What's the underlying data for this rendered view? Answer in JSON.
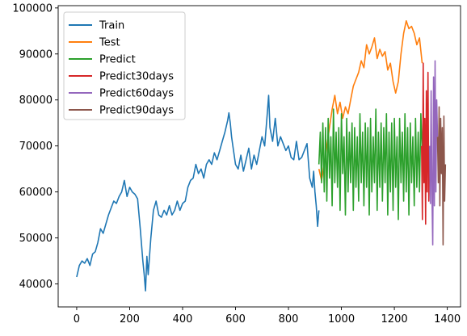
{
  "chart_data": {
    "type": "line",
    "title": "",
    "xlabel": "",
    "ylabel": "",
    "xlim": [
      -70,
      1450
    ],
    "ylim": [
      35000,
      100500
    ],
    "xticks": [
      0,
      200,
      400,
      600,
      800,
      1000,
      1200,
      1400
    ],
    "yticks": [
      40000,
      50000,
      60000,
      70000,
      80000,
      90000,
      100000
    ],
    "grid": false,
    "legend_position": "top-left",
    "series": [
      {
        "name": "Train",
        "color": "#1f77b4",
        "x": [
          0,
          10,
          20,
          30,
          40,
          50,
          60,
          70,
          80,
          90,
          100,
          110,
          120,
          130,
          140,
          150,
          160,
          170,
          180,
          190,
          200,
          210,
          220,
          230,
          240,
          250,
          255,
          260,
          265,
          270,
          280,
          290,
          300,
          310,
          320,
          330,
          340,
          350,
          360,
          370,
          380,
          390,
          400,
          410,
          420,
          430,
          440,
          450,
          460,
          470,
          480,
          490,
          500,
          510,
          520,
          530,
          540,
          550,
          560,
          570,
          575,
          580,
          585,
          590,
          600,
          610,
          620,
          630,
          640,
          650,
          660,
          670,
          680,
          690,
          700,
          710,
          720,
          725,
          730,
          740,
          750,
          760,
          770,
          780,
          790,
          800,
          810,
          820,
          830,
          840,
          850,
          860,
          870,
          880,
          890,
          895,
          900,
          905,
          910,
          915
        ],
        "values": [
          41500,
          44000,
          45000,
          44500,
          45500,
          44000,
          46500,
          47000,
          49000,
          52000,
          51000,
          53000,
          55000,
          56500,
          58000,
          57500,
          59000,
          60000,
          62500,
          59000,
          61000,
          60000,
          59500,
          58500,
          52000,
          45000,
          42000,
          38500,
          46000,
          42000,
          50000,
          56000,
          58000,
          55000,
          54500,
          56000,
          55000,
          57000,
          55000,
          56000,
          58000,
          56000,
          57500,
          58000,
          61000,
          62500,
          63000,
          66000,
          64000,
          65000,
          63000,
          66000,
          67000,
          66000,
          68500,
          67000,
          69000,
          71000,
          73000,
          75500,
          77200,
          75000,
          72000,
          70000,
          66000,
          65000,
          68000,
          64500,
          67000,
          69500,
          65000,
          68000,
          66000,
          69000,
          72000,
          70000,
          77000,
          81000,
          74000,
          71000,
          76000,
          70000,
          72000,
          70500,
          69000,
          70000,
          67500,
          67000,
          71000,
          67000,
          67500,
          69000,
          70500,
          63000,
          61000,
          64500,
          60000,
          57000,
          52500,
          56000
        ]
      },
      {
        "name": "Test",
        "color": "#ff7f0e",
        "x": [
          915,
          925,
          935,
          945,
          955,
          965,
          975,
          985,
          995,
          1005,
          1015,
          1025,
          1035,
          1045,
          1055,
          1065,
          1075,
          1085,
          1095,
          1105,
          1115,
          1125,
          1135,
          1145,
          1155,
          1165,
          1175,
          1185,
          1195,
          1205,
          1215,
          1225,
          1235,
          1245,
          1255,
          1265,
          1275,
          1285,
          1295,
          1305
        ],
        "values": [
          65000,
          62500,
          66000,
          70000,
          74000,
          78000,
          81000,
          77000,
          79500,
          76000,
          78500,
          77000,
          80000,
          83000,
          84500,
          86000,
          88500,
          87000,
          92000,
          90000,
          91500,
          93500,
          89000,
          91000,
          89500,
          90500,
          86500,
          88000,
          84000,
          81500,
          84000,
          90000,
          94500,
          97200,
          95500,
          96000,
          94500,
          92000,
          93500,
          88000
        ]
      },
      {
        "name": "Predict",
        "color": "#2ca02c",
        "x": [
          915,
          920,
          925,
          930,
          935,
          940,
          945,
          950,
          955,
          960,
          965,
          970,
          975,
          980,
          985,
          990,
          995,
          1000,
          1005,
          1010,
          1015,
          1020,
          1025,
          1030,
          1035,
          1040,
          1045,
          1050,
          1055,
          1060,
          1065,
          1070,
          1075,
          1080,
          1085,
          1090,
          1095,
          1100,
          1105,
          1110,
          1115,
          1120,
          1125,
          1130,
          1135,
          1140,
          1145,
          1150,
          1155,
          1160,
          1165,
          1170,
          1175,
          1180,
          1185,
          1190,
          1195,
          1200,
          1205,
          1210,
          1215,
          1220,
          1225,
          1230,
          1235,
          1240,
          1245,
          1250,
          1255,
          1260,
          1265,
          1270,
          1275,
          1280,
          1285,
          1290,
          1295,
          1300,
          1305
        ],
        "values": [
          66000,
          73000,
          62000,
          75000,
          60000,
          74000,
          58000,
          76000,
          63000,
          72000,
          57000,
          78000,
          62000,
          73000,
          61000,
          74000,
          56000,
          77000,
          64000,
          72000,
          55000,
          76000,
          60000,
          73000,
          62000,
          75000,
          56000,
          74000,
          61000,
          72000,
          58000,
          77000,
          62000,
          73000,
          57000,
          75000,
          61000,
          74000,
          55000,
          76000,
          60000,
          72000,
          62000,
          78000,
          56000,
          73000,
          61000,
          75000,
          58000,
          74000,
          62000,
          77000,
          55000,
          73000,
          60000,
          75000,
          56000,
          76000,
          61000,
          72000,
          54000,
          76000,
          62000,
          73000,
          58000,
          77000,
          60000,
          74000,
          55000,
          75000,
          62000,
          72000,
          57000,
          76000,
          61000,
          73000,
          60000,
          77000,
          69000
        ]
      },
      {
        "name": "Predict30days",
        "color": "#d62728",
        "x": [
          1303,
          1306,
          1309,
          1312,
          1315,
          1318,
          1321,
          1324,
          1327,
          1330,
          1333
        ],
        "values": [
          70000,
          54000,
          88000,
          62000,
          76000,
          53000,
          82000,
          60000,
          86000,
          58000,
          70000
        ]
      },
      {
        "name": "Predict60days",
        "color": "#9467bd",
        "x": [
          1333,
          1336,
          1339,
          1342,
          1345,
          1348,
          1351,
          1354,
          1357,
          1360,
          1363
        ],
        "values": [
          70000,
          57500,
          82000,
          60000,
          48500,
          85000,
          57000,
          88500,
          60000,
          80000,
          72000
        ]
      },
      {
        "name": "Predict90days",
        "color": "#8c564b",
        "x": [
          1363,
          1366,
          1369,
          1372,
          1375,
          1378,
          1381,
          1384,
          1387,
          1390,
          1393
        ],
        "values": [
          72000,
          62000,
          78500,
          57000,
          76000,
          64000,
          74000,
          48500,
          76500,
          58000,
          66000
        ]
      }
    ]
  }
}
